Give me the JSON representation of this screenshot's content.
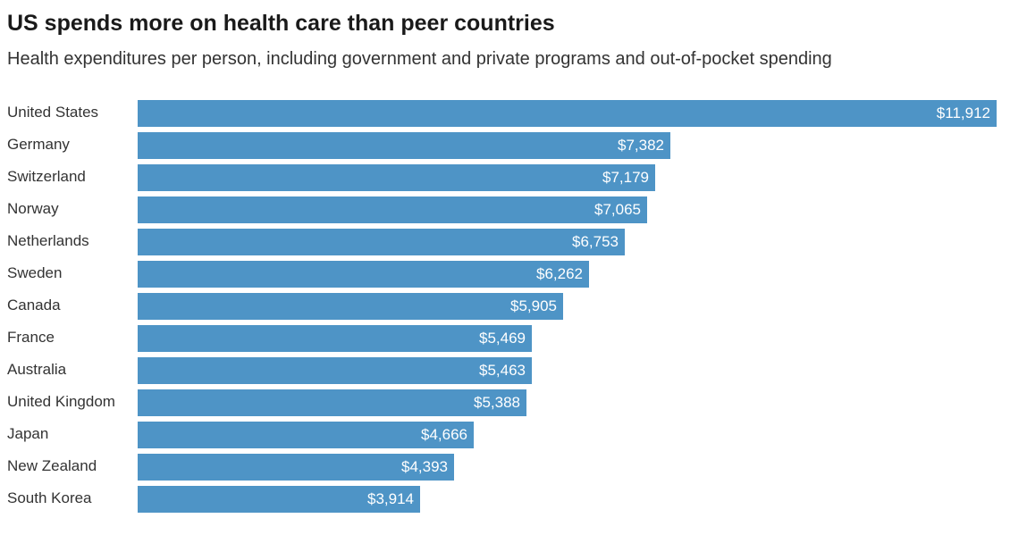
{
  "chart_data": {
    "type": "bar",
    "orientation": "horizontal",
    "title": "US spends more on health care than peer countries",
    "subtitle": "Health expenditures per person, including government and private programs and out-of-pocket spending",
    "bar_color": "#4e94c6",
    "xlim": [
      0,
      11912
    ],
    "categories": [
      "United States",
      "Germany",
      "Switzerland",
      "Norway",
      "Netherlands",
      "Sweden",
      "Canada",
      "France",
      "Australia",
      "United Kingdom",
      "Japan",
      "New Zealand",
      "South Korea"
    ],
    "values": [
      11912,
      7382,
      7179,
      7065,
      6753,
      6262,
      5905,
      5469,
      5463,
      5388,
      4666,
      4393,
      3914
    ],
    "value_labels": [
      "$11,912",
      "$7,382",
      "$7,179",
      "$7,065",
      "$6,753",
      "$6,262",
      "$5,905",
      "$5,469",
      "$5,463",
      "$5,388",
      "$4,666",
      "$4,393",
      "$3,914"
    ]
  }
}
